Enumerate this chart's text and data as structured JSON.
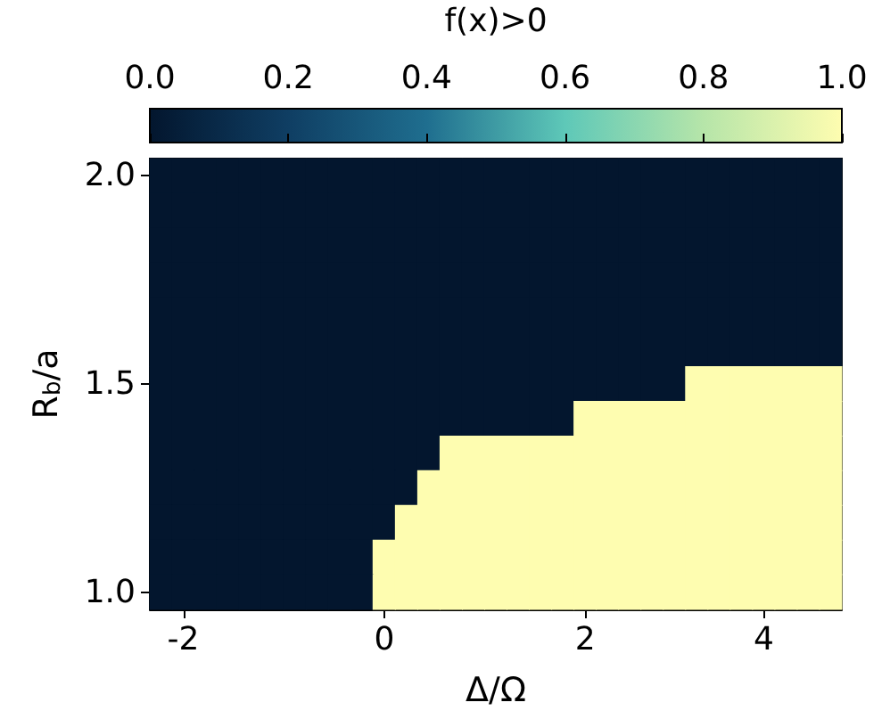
{
  "chart_data": {
    "type": "heatmap",
    "xlabel": "Δ/Ω",
    "ylabel": "R$_{b}$/a",
    "clabel": "f(x)>0",
    "categories": [
      null,
      "-2",
      null,
      null,
      null,
      null,
      null,
      null,
      null,
      null,
      "0",
      null,
      null,
      null,
      null,
      null,
      null,
      null,
      null,
      "2",
      null,
      null,
      null,
      null,
      null,
      null,
      null,
      "4",
      null,
      null,
      null
    ],
    "y_categories": [
      "2.0",
      null,
      null,
      null,
      null,
      null,
      "1.5",
      null,
      null,
      null,
      null,
      null,
      "1.0"
    ],
    "cells": [
      [
        0,
        0,
        0,
        0,
        0,
        0,
        0,
        0,
        0,
        0,
        0,
        0,
        0,
        0,
        0,
        0,
        0,
        0,
        0,
        0,
        0,
        0,
        0,
        0,
        0,
        0,
        0,
        0,
        0,
        0,
        0
      ],
      [
        0,
        0,
        0,
        0,
        0,
        0,
        0,
        0,
        0,
        0,
        0,
        0,
        0,
        0,
        0,
        0,
        0,
        0,
        0,
        0,
        0,
        0,
        0,
        0,
        0,
        0,
        0,
        0,
        0,
        0,
        0
      ],
      [
        0,
        0,
        0,
        0,
        0,
        0,
        0,
        0,
        0,
        0,
        0,
        0,
        0,
        0,
        0,
        0,
        0,
        0,
        0,
        0,
        0,
        0,
        0,
        0,
        0,
        0,
        0,
        0,
        0,
        0,
        0
      ],
      [
        0,
        0,
        0,
        0,
        0,
        0,
        0,
        0,
        0,
        0,
        0,
        0,
        0,
        0,
        0,
        0,
        0,
        0,
        0,
        0,
        0,
        0,
        0,
        0,
        0,
        0,
        0,
        0,
        0,
        0,
        0
      ],
      [
        0,
        0,
        0,
        0,
        0,
        0,
        0,
        0,
        0,
        0,
        0,
        0,
        0,
        0,
        0,
        0,
        0,
        0,
        0,
        0,
        0,
        0,
        0,
        0,
        0,
        0,
        0,
        0,
        0,
        0,
        0
      ],
      [
        0,
        0,
        0,
        0,
        0,
        0,
        0,
        0,
        0,
        0,
        0,
        0,
        0,
        0,
        0,
        0,
        0,
        0,
        0,
        0,
        0,
        0,
        0,
        0,
        0,
        0,
        0,
        0,
        0,
        0,
        0
      ],
      [
        0,
        0,
        0,
        0,
        0,
        0,
        0,
        0,
        0,
        0,
        0,
        0,
        0,
        0,
        0,
        0,
        0,
        0,
        0,
        0,
        0,
        0,
        0,
        0,
        1,
        1,
        1,
        1,
        1,
        1,
        1
      ],
      [
        0,
        0,
        0,
        0,
        0,
        0,
        0,
        0,
        0,
        0,
        0,
        0,
        0,
        0,
        0,
        0,
        0,
        0,
        0,
        1,
        1,
        1,
        1,
        1,
        1,
        1,
        1,
        1,
        1,
        1,
        1
      ],
      [
        0,
        0,
        0,
        0,
        0,
        0,
        0,
        0,
        0,
        0,
        0,
        0,
        0,
        1,
        1,
        1,
        1,
        1,
        1,
        1,
        1,
        1,
        1,
        1,
        1,
        1,
        1,
        1,
        1,
        1,
        1
      ],
      [
        0,
        0,
        0,
        0,
        0,
        0,
        0,
        0,
        0,
        0,
        0,
        0,
        1,
        1,
        1,
        1,
        1,
        1,
        1,
        1,
        1,
        1,
        1,
        1,
        1,
        1,
        1,
        1,
        1,
        1,
        1
      ],
      [
        0,
        0,
        0,
        0,
        0,
        0,
        0,
        0,
        0,
        0,
        0,
        1,
        1,
        1,
        1,
        1,
        1,
        1,
        1,
        1,
        1,
        1,
        1,
        1,
        1,
        1,
        1,
        1,
        1,
        1,
        1
      ],
      [
        0,
        0,
        0,
        0,
        0,
        0,
        0,
        0,
        0,
        0,
        1,
        1,
        1,
        1,
        1,
        1,
        1,
        1,
        1,
        1,
        1,
        1,
        1,
        1,
        1,
        1,
        1,
        1,
        1,
        1,
        1
      ],
      [
        0,
        0,
        0,
        0,
        0,
        0,
        0,
        0,
        0,
        0,
        1,
        1,
        1,
        1,
        1,
        1,
        1,
        1,
        1,
        1,
        1,
        1,
        1,
        1,
        1,
        1,
        1,
        1,
        1,
        1,
        1
      ]
    ],
    "clim": [
      0,
      1
    ],
    "cticks": [
      {
        "value": 0,
        "label": "0.0"
      },
      {
        "value": 0.2,
        "label": "0.2"
      },
      {
        "value": 0.4,
        "label": "0.4"
      },
      {
        "value": 0.6,
        "label": "0.6"
      },
      {
        "value": 0.8,
        "label": "0.8"
      },
      {
        "value": 1,
        "label": "1.0"
      }
    ]
  }
}
